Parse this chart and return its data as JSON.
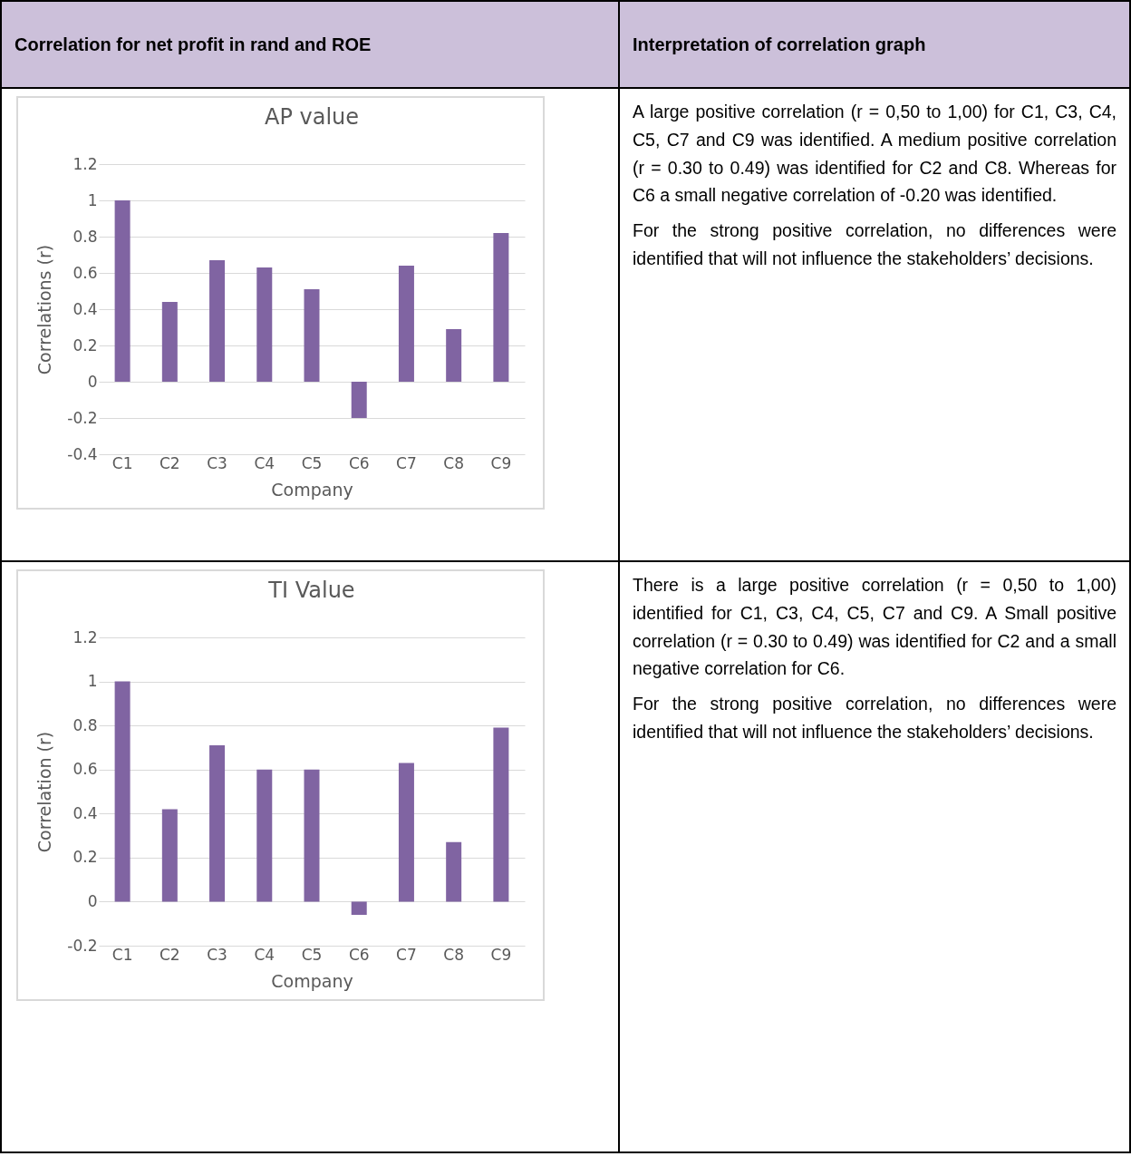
{
  "chart_data": [
    {
      "type": "other",
      "annotations": [
        "Correlation for net profit in rand and ROE",
        "Interpretation of correlation graph"
      ]
    },
    {
      "type": "bar",
      "title": "AP value",
      "xlabel": "Company",
      "ylabel": "Correlations (r)",
      "categories": [
        "C1",
        "C2",
        "C3",
        "C4",
        "C5",
        "C6",
        "C7",
        "C8",
        "C9"
      ],
      "values": [
        1.0,
        0.44,
        0.67,
        0.63,
        0.51,
        -0.2,
        0.64,
        0.29,
        0.82
      ],
      "color": "#8064a2",
      "ylim": [
        -0.4,
        1.2
      ],
      "yticks": [
        -0.4,
        -0.2,
        0,
        0.2,
        0.4,
        0.6,
        0.8,
        1,
        1.2
      ],
      "grid": "y"
    },
    {
      "type": "other",
      "annotations": [
        "A large positive correlation (r = 0,50 to 1,00) for C1, C3, C4, C5, C7 and C9 was identified. A medium positive correlation (r = 0.30 to 0.49) was identified for C2 and C8. Whereas for C6 a small negative correlation of -0.20 was identified.",
        "For the strong positive correlation, no differences were identified that will not influence the stakeholders’ decisions."
      ]
    },
    {
      "type": "bar",
      "title": "TI Value",
      "xlabel": "Company",
      "ylabel": "Correlation (r)",
      "categories": [
        "C1",
        "C2",
        "C3",
        "C4",
        "C5",
        "C6",
        "C7",
        "C8",
        "C9"
      ],
      "values": [
        1.0,
        0.42,
        0.71,
        0.6,
        0.6,
        -0.06,
        0.63,
        0.27,
        0.79
      ],
      "color": "#8064a2",
      "ylim": [
        -0.2,
        1.2
      ],
      "yticks": [
        -0.2,
        0,
        0.2,
        0.4,
        0.6,
        0.8,
        1,
        1.2
      ],
      "grid": "y"
    },
    {
      "type": "other",
      "annotations": [
        "There is a large positive correlation (r = 0,50 to 1,00) identified for C1, C3, C4, C5, C7 and C9. A Small positive correlation (r = 0.30 to 0.49) was identified for C2 and a small negative correlation for C6.",
        "For the strong positive correlation, no differences were identified that will not influence the stakeholders’ decisions."
      ]
    }
  ]
}
